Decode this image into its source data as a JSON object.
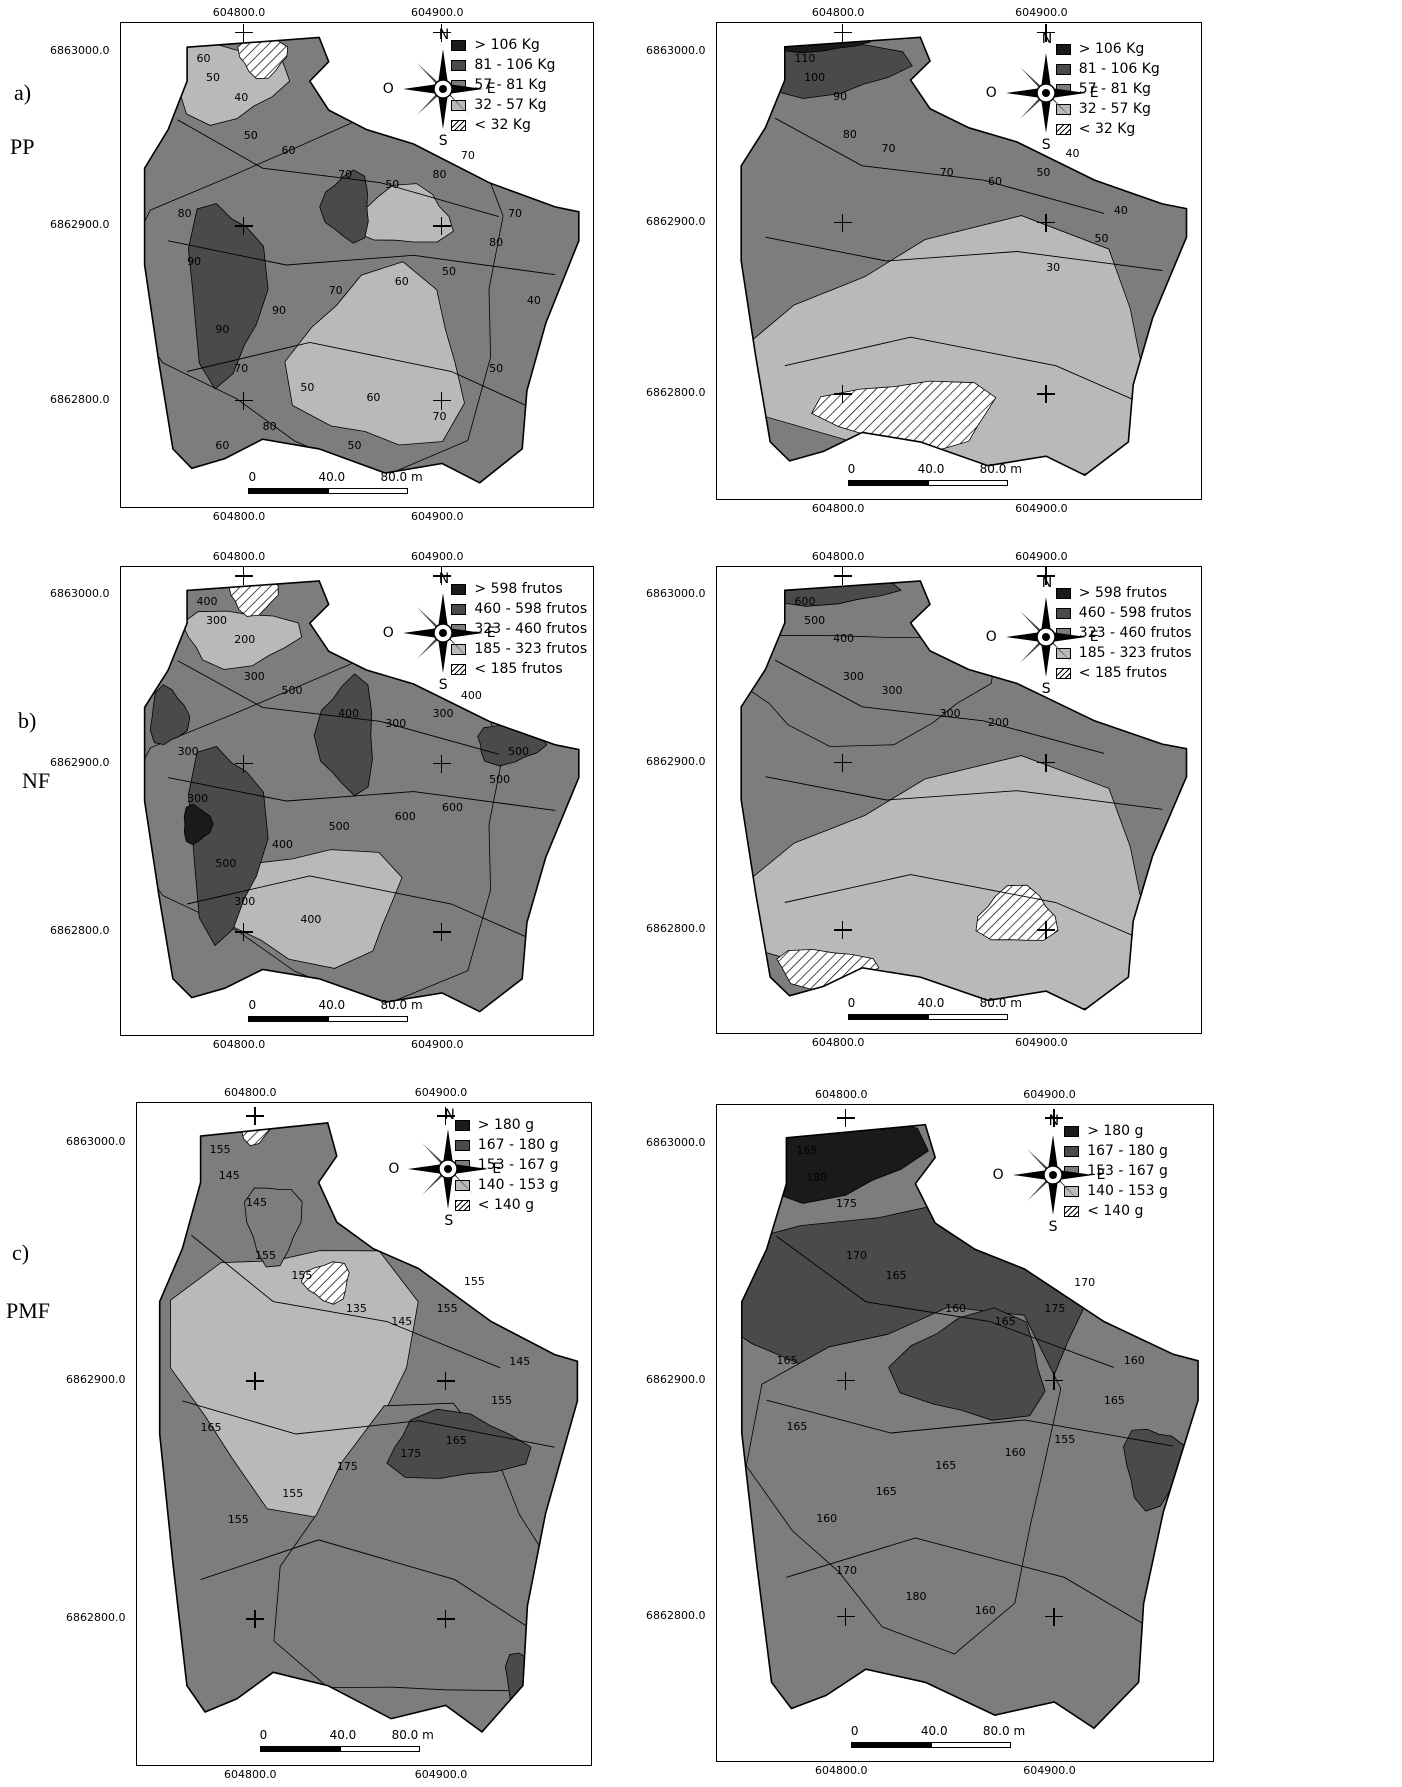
{
  "rows": [
    {
      "letter": "a)",
      "variable": "PP",
      "legend": [
        "> 106 Kg",
        "81 - 106 Kg",
        "57 - 81 Kg",
        "32 - 57 Kg",
        "< 32 Kg"
      ],
      "left_contours": [
        "60",
        "50",
        "40",
        "50",
        "60",
        "70",
        "50",
        "80",
        "70",
        "70",
        "80",
        "50",
        "60",
        "70",
        "90",
        "90",
        "90",
        "80",
        "70",
        "50",
        "60",
        "70",
        "50",
        "40",
        "50",
        "80",
        "60"
      ],
      "right_contours": [
        "110",
        "100",
        "90",
        "80",
        "70",
        "70",
        "60",
        "50",
        "40",
        "40",
        "50",
        "30"
      ]
    },
    {
      "letter": "b)",
      "variable": "NF",
      "legend": [
        "> 598 frutos",
        "460 - 598 frutos",
        "323 - 460 frutos",
        "185 - 323 frutos",
        "< 185 frutos"
      ],
      "left_contours": [
        "400",
        "300",
        "200",
        "300",
        "500",
        "400",
        "300",
        "300",
        "400",
        "500",
        "500",
        "600",
        "600",
        "500",
        "400",
        "500",
        "300",
        "300",
        "300",
        "400"
      ],
      "right_contours": [
        "600",
        "500",
        "400",
        "300",
        "300",
        "300",
        "200"
      ]
    },
    {
      "letter": "c)",
      "variable": "PMF",
      "legend": [
        "> 180 g",
        "167 - 180 g",
        "153 - 167 g",
        "140 - 153 g",
        "< 140 g"
      ],
      "left_contours": [
        "155",
        "145",
        "145",
        "155",
        "155",
        "135",
        "145",
        "155",
        "155",
        "145",
        "155",
        "165",
        "175",
        "175",
        "155",
        "155",
        "165"
      ],
      "right_contours": [
        "165",
        "180",
        "175",
        "170",
        "165",
        "160",
        "165",
        "175",
        "170",
        "160",
        "165",
        "155",
        "160",
        "165",
        "165",
        "160",
        "165",
        "165",
        "170",
        "180",
        "160"
      ]
    }
  ],
  "coords": {
    "x_ticks": [
      "604800.0",
      "604900.0"
    ],
    "y_ticks": [
      "6863000.0",
      "6862900.0",
      "6862800.0"
    ]
  },
  "scale": {
    "zero": "0",
    "mid": "40.0",
    "end": "80.0 m"
  },
  "compass": {
    "n": "N",
    "s": "S",
    "e": "E",
    "w": "O"
  },
  "legend_colors": [
    "#1a1a1a",
    "#4a4a4a",
    "#7d7d7d",
    "#b9b9b9",
    "hatch"
  ]
}
